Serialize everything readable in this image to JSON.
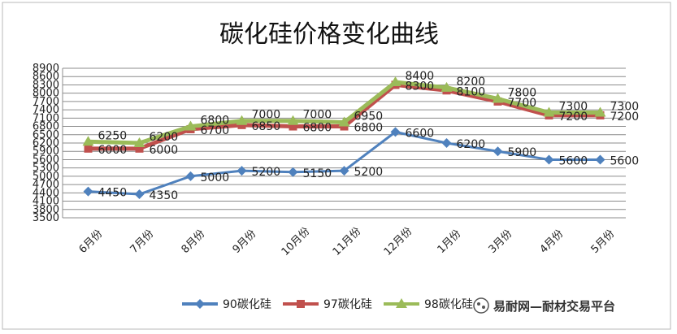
{
  "chart_data": {
    "type": "line",
    "title": "碳化硅价格变化曲线",
    "xlabel": "",
    "ylabel": "",
    "categories": [
      "6月份",
      "7月份",
      "8月份",
      "9月份",
      "10月份",
      "11月份",
      "12月份",
      "1月份",
      "3月份",
      "4月份",
      "5月份"
    ],
    "yticks": [
      3500,
      3800,
      4100,
      4400,
      4700,
      5000,
      5300,
      5600,
      5900,
      6200,
      6500,
      6800,
      7100,
      7400,
      7700,
      8000,
      8300,
      8600,
      8900
    ],
    "ylim": [
      3500,
      8900
    ],
    "grid": true,
    "legend_position": "bottom",
    "series": [
      {
        "name": "90碳化硅",
        "color": "#4f81bd",
        "marker": "diamond",
        "values": [
          4450,
          4350,
          5000,
          5200,
          5150,
          5200,
          6600,
          6200,
          5900,
          5600,
          5600
        ]
      },
      {
        "name": "97碳化硅",
        "color": "#c0504d",
        "marker": "square",
        "values": [
          6000,
          6000,
          6700,
          6850,
          6800,
          6800,
          8300,
          8100,
          7700,
          7200,
          7200
        ]
      },
      {
        "name": "98碳化硅",
        "color": "#9bbb59",
        "marker": "triangle",
        "values": [
          6250,
          6200,
          6800,
          7000,
          7000,
          6950,
          8400,
          8200,
          7800,
          7300,
          7300
        ]
      }
    ]
  },
  "watermark": {
    "icon": "wechat-official-account-icon",
    "text": "易耐网—耐材交易平台"
  }
}
